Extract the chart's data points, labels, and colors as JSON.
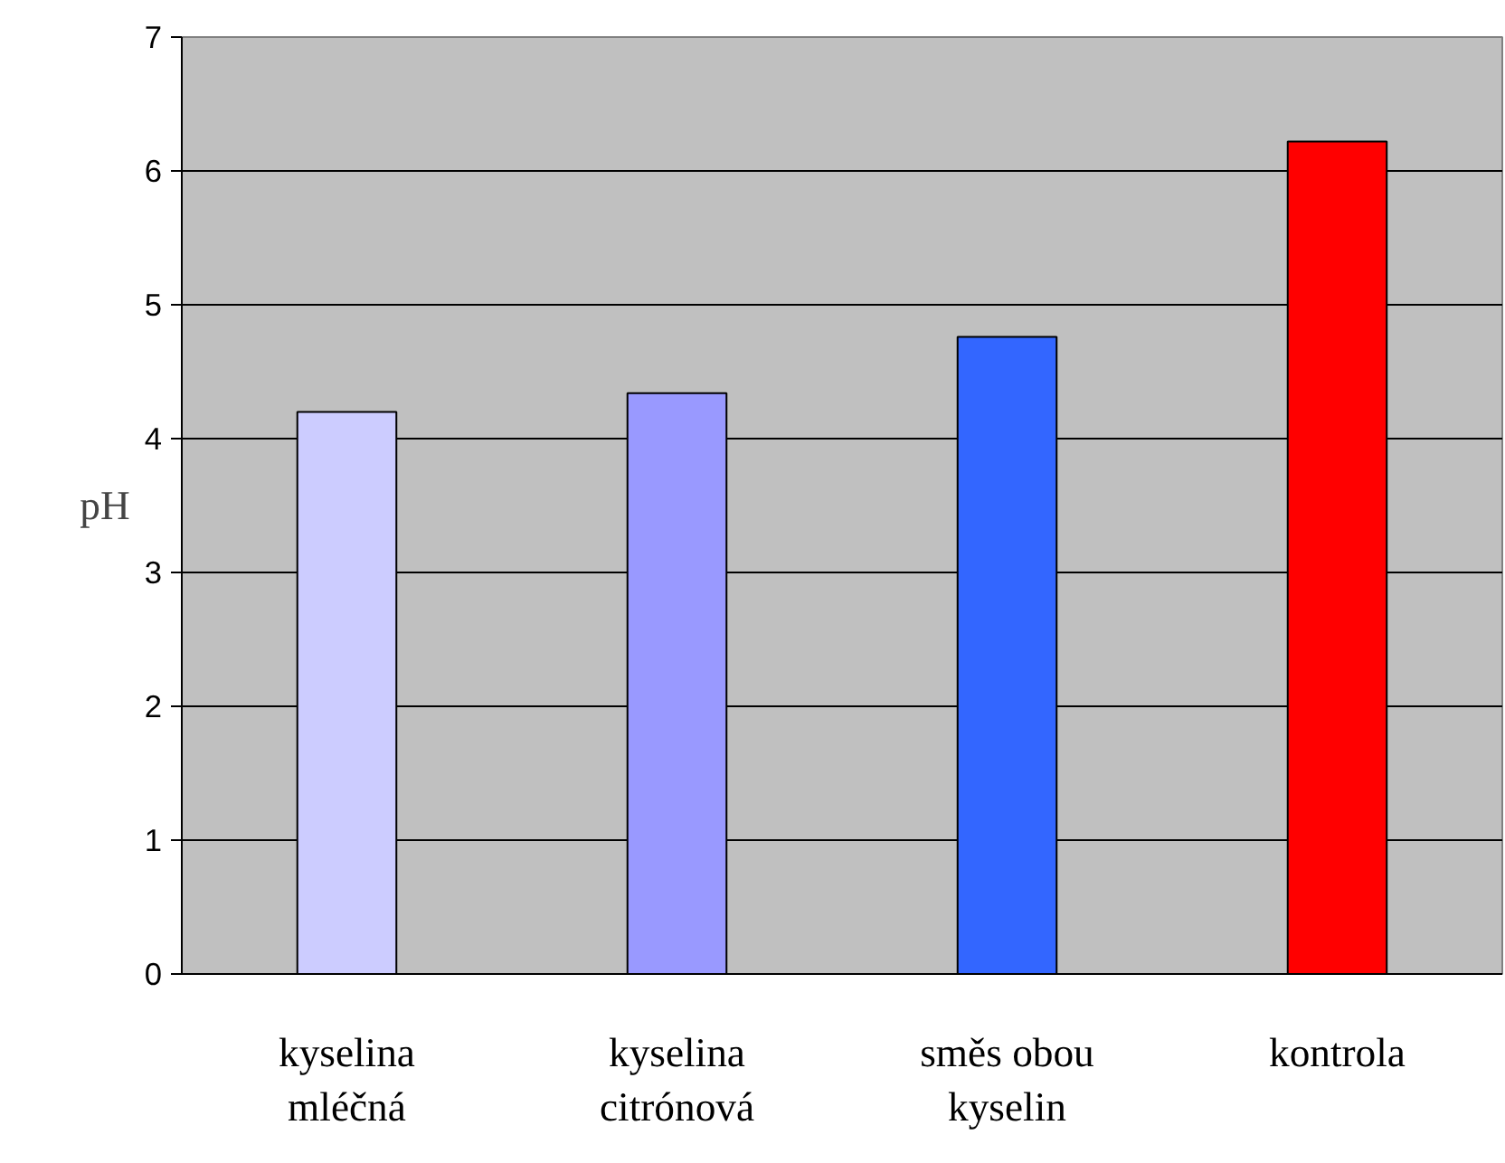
{
  "chart_data": {
    "type": "bar",
    "ylabel": "pH",
    "categories": [
      "kyselina\nmléčná",
      "kyselina\ncitrónová",
      "směs obou\nkyselin",
      "kontrola"
    ],
    "values": [
      4.2,
      4.34,
      4.76,
      6.22
    ],
    "colors": [
      "#ccccff",
      "#9999ff",
      "#3366ff",
      "#ff0000"
    ],
    "ylim": [
      0,
      7
    ],
    "yticks": [
      0,
      1,
      2,
      3,
      4,
      5,
      6,
      7
    ],
    "grid": "y"
  }
}
